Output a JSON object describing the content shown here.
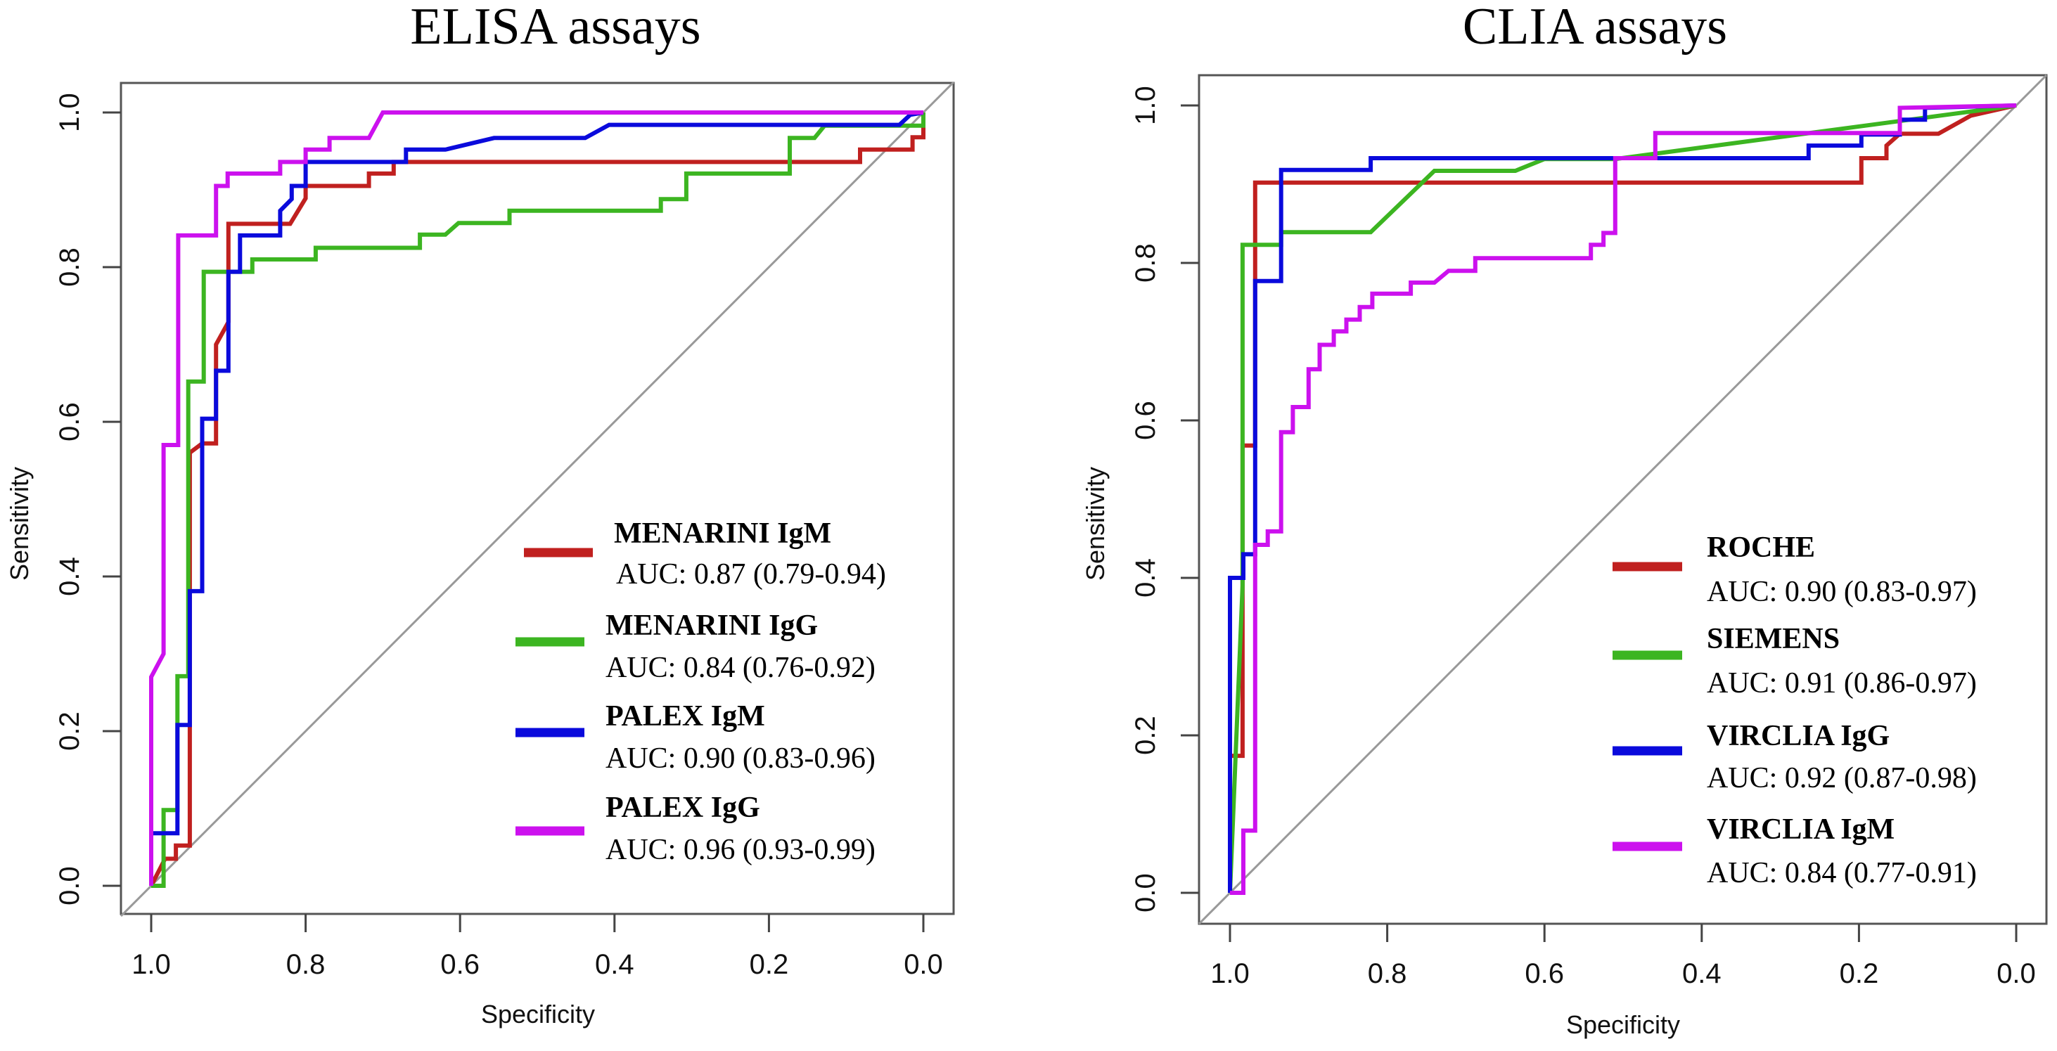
{
  "chart_data": [
    {
      "type": "line",
      "title": "ELISA assays",
      "xlabel": "Specificity",
      "ylabel": "Sensitivity",
      "xlim": [
        1.0,
        0.0
      ],
      "ylim": [
        0.0,
        1.0
      ],
      "x_reversed": true,
      "xticks": [
        "1.0",
        "0.8",
        "0.6",
        "0.4",
        "0.2",
        "0.0"
      ],
      "yticks": [
        "0.0",
        "0.2",
        "0.4",
        "0.6",
        "0.8",
        "1.0"
      ],
      "grid": false,
      "legend_position": "bottom-right",
      "reference_line": "chance diagonal",
      "series": [
        {
          "name": "MENARINI IgM",
          "auc": "AUC: 0.87 (0.79-0.94)",
          "color": "#c0201f",
          "points": [
            [
              1.0,
              0.0
            ],
            [
              0.982,
              0.035
            ],
            [
              0.968,
              0.035
            ],
            [
              0.968,
              0.052
            ],
            [
              0.95,
              0.052
            ],
            [
              0.95,
              0.56
            ],
            [
              0.934,
              0.572
            ],
            [
              0.916,
              0.572
            ],
            [
              0.916,
              0.7
            ],
            [
              0.9,
              0.729
            ],
            [
              0.9,
              0.856
            ],
            [
              0.82,
              0.856
            ],
            [
              0.8,
              0.889
            ],
            [
              0.8,
              0.905
            ],
            [
              0.718,
              0.905
            ],
            [
              0.718,
              0.921
            ],
            [
              0.686,
              0.921
            ],
            [
              0.686,
              0.936
            ],
            [
              0.082,
              0.936
            ],
            [
              0.082,
              0.952
            ],
            [
              0.014,
              0.952
            ],
            [
              0.014,
              0.968
            ],
            [
              0.0,
              0.968
            ],
            [
              0.0,
              1.0
            ]
          ]
        },
        {
          "name": "MENARINI IgG",
          "auc": "AUC: 0.84 (0.76-0.92)",
          "color": "#3cb521",
          "points": [
            [
              1.0,
              0.0
            ],
            [
              0.984,
              0.0
            ],
            [
              0.984,
              0.098
            ],
            [
              0.966,
              0.098
            ],
            [
              0.966,
              0.271
            ],
            [
              0.952,
              0.271
            ],
            [
              0.952,
              0.652
            ],
            [
              0.932,
              0.652
            ],
            [
              0.932,
              0.794
            ],
            [
              0.869,
              0.794
            ],
            [
              0.869,
              0.81
            ],
            [
              0.787,
              0.81
            ],
            [
              0.787,
              0.825
            ],
            [
              0.652,
              0.825
            ],
            [
              0.652,
              0.842
            ],
            [
              0.619,
              0.842
            ],
            [
              0.602,
              0.857
            ],
            [
              0.536,
              0.857
            ],
            [
              0.536,
              0.873
            ],
            [
              0.34,
              0.873
            ],
            [
              0.34,
              0.888
            ],
            [
              0.307,
              0.888
            ],
            [
              0.307,
              0.921
            ],
            [
              0.173,
              0.921
            ],
            [
              0.173,
              0.967
            ],
            [
              0.141,
              0.967
            ],
            [
              0.128,
              0.983
            ],
            [
              0.0,
              0.983
            ],
            [
              0.0,
              1.0
            ]
          ]
        },
        {
          "name": "PALEX IgM",
          "auc": "AUC: 0.90 (0.83-0.96)",
          "color": "#0a0adc",
          "points": [
            [
              1.0,
              0.0
            ],
            [
              1.0,
              0.068
            ],
            [
              0.966,
              0.068
            ],
            [
              0.966,
              0.208
            ],
            [
              0.95,
              0.208
            ],
            [
              0.95,
              0.381
            ],
            [
              0.934,
              0.381
            ],
            [
              0.934,
              0.604
            ],
            [
              0.916,
              0.604
            ],
            [
              0.916,
              0.666
            ],
            [
              0.9,
              0.666
            ],
            [
              0.9,
              0.794
            ],
            [
              0.885,
              0.794
            ],
            [
              0.885,
              0.841
            ],
            [
              0.833,
              0.841
            ],
            [
              0.833,
              0.873
            ],
            [
              0.818,
              0.888
            ],
            [
              0.818,
              0.905
            ],
            [
              0.8,
              0.905
            ],
            [
              0.8,
              0.936
            ],
            [
              0.67,
              0.936
            ],
            [
              0.67,
              0.952
            ],
            [
              0.619,
              0.952
            ],
            [
              0.556,
              0.967
            ],
            [
              0.438,
              0.967
            ],
            [
              0.407,
              0.984
            ],
            [
              0.031,
              0.984
            ],
            [
              0.017,
              0.997
            ],
            [
              0.0,
              1.0
            ]
          ]
        },
        {
          "name": "PALEX IgG",
          "auc": "AUC: 0.96 (0.93-0.99)",
          "color": "#cc11ee",
          "points": [
            [
              1.0,
              0.0
            ],
            [
              1.0,
              0.27
            ],
            [
              0.984,
              0.3
            ],
            [
              0.984,
              0.57
            ],
            [
              0.965,
              0.57
            ],
            [
              0.965,
              0.841
            ],
            [
              0.916,
              0.841
            ],
            [
              0.916,
              0.905
            ],
            [
              0.901,
              0.905
            ],
            [
              0.901,
              0.921
            ],
            [
              0.833,
              0.921
            ],
            [
              0.833,
              0.936
            ],
            [
              0.8,
              0.936
            ],
            [
              0.8,
              0.952
            ],
            [
              0.769,
              0.952
            ],
            [
              0.769,
              0.967
            ],
            [
              0.718,
              0.967
            ],
            [
              0.7,
              1.0
            ],
            [
              0.0,
              1.0
            ]
          ]
        }
      ]
    },
    {
      "type": "line",
      "title": "CLIA assays",
      "xlabel": "Specificity",
      "ylabel": "Sensitivity",
      "xlim": [
        1.0,
        0.0
      ],
      "ylim": [
        0.0,
        1.0
      ],
      "x_reversed": true,
      "xticks": [
        "1.0",
        "0.8",
        "0.6",
        "0.4",
        "0.2",
        "0.0"
      ],
      "yticks": [
        "0.0",
        "0.2",
        "0.4",
        "0.6",
        "0.8",
        "1.0"
      ],
      "grid": false,
      "legend_position": "bottom-right",
      "reference_line": "chance diagonal",
      "series": [
        {
          "name": "ROCHE",
          "auc": "AUC: 0.90 (0.83-0.97)",
          "color": "#c0201f",
          "points": [
            [
              1.0,
              0.0
            ],
            [
              1.0,
              0.174
            ],
            [
              0.984,
              0.174
            ],
            [
              0.984,
              0.568
            ],
            [
              0.968,
              0.568
            ],
            [
              0.968,
              0.902
            ],
            [
              0.197,
              0.902
            ],
            [
              0.197,
              0.933
            ],
            [
              0.165,
              0.933
            ],
            [
              0.165,
              0.949
            ],
            [
              0.148,
              0.964
            ],
            [
              0.099,
              0.964
            ],
            [
              0.058,
              0.987
            ],
            [
              0.0,
              1.0
            ]
          ]
        },
        {
          "name": "SIEMENS",
          "auc": "AUC: 0.91 (0.86-0.97)",
          "color": "#3cb521",
          "points": [
            [
              1.0,
              0.0
            ],
            [
              0.984,
              0.39
            ],
            [
              0.984,
              0.823
            ],
            [
              0.968,
              0.823
            ],
            [
              0.935,
              0.823
            ],
            [
              0.935,
              0.839
            ],
            [
              0.821,
              0.839
            ],
            [
              0.74,
              0.917
            ],
            [
              0.637,
              0.917
            ],
            [
              0.6,
              0.932
            ],
            [
              0.51,
              0.932
            ],
            [
              0.0,
              1.0
            ]
          ]
        },
        {
          "name": "VIRCLIA IgG",
          "auc": "AUC: 0.92 (0.87-0.98)",
          "color": "#0a0adc",
          "points": [
            [
              1.0,
              0.0
            ],
            [
              1.0,
              0.4
            ],
            [
              0.983,
              0.4
            ],
            [
              0.983,
              0.43
            ],
            [
              0.968,
              0.43
            ],
            [
              0.968,
              0.777
            ],
            [
              0.935,
              0.777
            ],
            [
              0.935,
              0.918
            ],
            [
              0.821,
              0.918
            ],
            [
              0.821,
              0.933
            ],
            [
              0.264,
              0.933
            ],
            [
              0.264,
              0.949
            ],
            [
              0.197,
              0.949
            ],
            [
              0.197,
              0.963
            ],
            [
              0.148,
              0.963
            ],
            [
              0.148,
              0.982
            ],
            [
              0.116,
              0.982
            ],
            [
              0.116,
              0.997
            ],
            [
              0.0,
              1.0
            ]
          ]
        },
        {
          "name": "VIRCLIA IgM",
          "auc": "AUC: 0.84 (0.77-0.91)",
          "color": "#cc11ee",
          "points": [
            [
              1.0,
              0.0
            ],
            [
              0.983,
              0.0
            ],
            [
              0.983,
              0.079
            ],
            [
              0.968,
              0.079
            ],
            [
              0.968,
              0.442
            ],
            [
              0.952,
              0.442
            ],
            [
              0.952,
              0.459
            ],
            [
              0.935,
              0.459
            ],
            [
              0.935,
              0.585
            ],
            [
              0.92,
              0.585
            ],
            [
              0.92,
              0.617
            ],
            [
              0.9,
              0.617
            ],
            [
              0.9,
              0.665
            ],
            [
              0.886,
              0.665
            ],
            [
              0.886,
              0.696
            ],
            [
              0.868,
              0.696
            ],
            [
              0.868,
              0.713
            ],
            [
              0.852,
              0.713
            ],
            [
              0.852,
              0.728
            ],
            [
              0.835,
              0.728
            ],
            [
              0.835,
              0.744
            ],
            [
              0.819,
              0.744
            ],
            [
              0.819,
              0.761
            ],
            [
              0.77,
              0.761
            ],
            [
              0.77,
              0.775
            ],
            [
              0.74,
              0.775
            ],
            [
              0.722,
              0.79
            ],
            [
              0.688,
              0.79
            ],
            [
              0.688,
              0.806
            ],
            [
              0.541,
              0.806
            ],
            [
              0.541,
              0.823
            ],
            [
              0.525,
              0.823
            ],
            [
              0.525,
              0.838
            ],
            [
              0.51,
              0.838
            ],
            [
              0.51,
              0.933
            ],
            [
              0.459,
              0.933
            ],
            [
              0.459,
              0.965
            ],
            [
              0.148,
              0.965
            ],
            [
              0.148,
              0.997
            ],
            [
              0.0,
              1.0
            ]
          ]
        }
      ]
    }
  ]
}
